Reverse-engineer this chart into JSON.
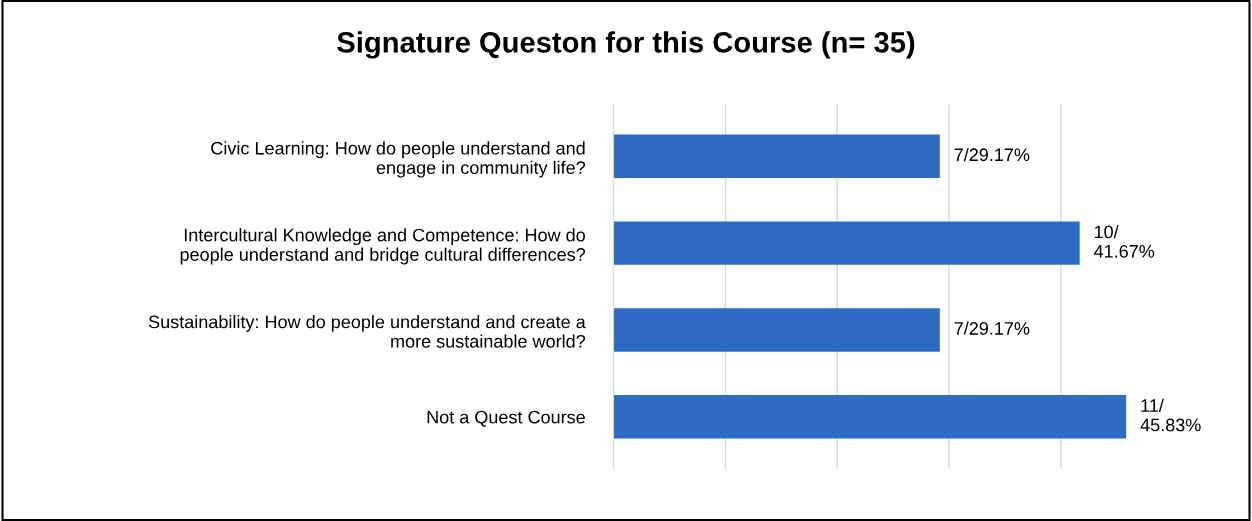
{
  "chart_data": {
    "type": "bar",
    "orientation": "horizontal",
    "tick_labels": "y",
    "title": "Signature Queston for this Course (n= 35)",
    "categories": [
      "Civic Learning: How do people understand and\nengage in community life?",
      "Intercultural Knowledge and Competence: How do\npeople understand and bridge cultural differences?",
      "Sustainability: How do people understand and create a\nmore sustainable world?",
      "Not a Quest Course"
    ],
    "values": [
      29.17,
      41.67,
      29.17,
      45.83
    ],
    "value_labels": [
      "7/29.17%",
      "10/\n41.67%",
      "7/29.17%",
      "11/\n45.83%"
    ],
    "color": "#2e6bc4",
    "grid": "x"
  }
}
